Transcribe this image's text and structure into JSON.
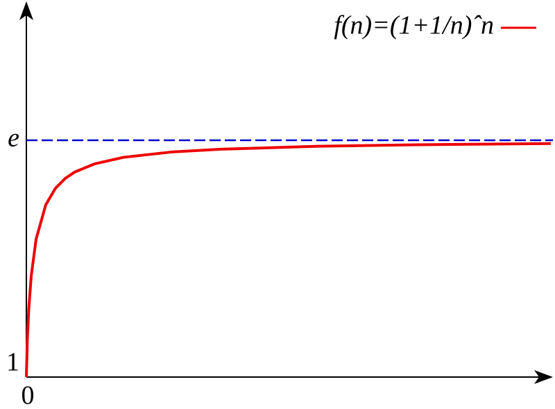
{
  "chart_data": {
    "type": "line",
    "x": [
      0,
      0.1,
      0.25,
      0.5,
      1,
      2,
      3,
      4,
      5,
      7,
      10,
      15,
      20,
      30,
      40,
      54
    ],
    "series": [
      {
        "name": "f(n)=(1+1/n)ˆn",
        "color": "#ee0000",
        "values": [
          1,
          1.271,
          1.495,
          1.732,
          2,
          2.25,
          2.37,
          2.441,
          2.488,
          2.546,
          2.594,
          2.633,
          2.653,
          2.674,
          2.685,
          2.694
        ]
      }
    ],
    "xlim": [
      0,
      54
    ],
    "ylim": [
      1,
      3.7
    ],
    "xticks": [
      0
    ],
    "yticks": [
      1,
      {
        "value": 2.718,
        "label": "e"
      }
    ],
    "reference_line": {
      "value": 2.718,
      "color": "#0000cc",
      "dashed": true
    },
    "legend": "top-right"
  }
}
